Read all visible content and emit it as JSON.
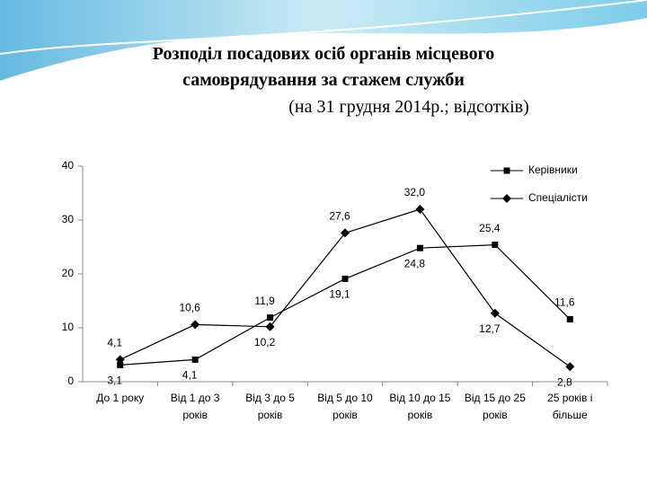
{
  "chart_data": {
    "type": "line",
    "title": "Розподіл посадових осіб органів місцевого\nсамоврядування за стажем служби",
    "subtitle": "(на 31 грудня 2014р.; відсотків)",
    "categories": [
      "До 1 року",
      "Від 1 до 3\nроків",
      "Від 3 до 5\nроків",
      "Від 5 до 10\nроків",
      "Від 10 до 15\nроків",
      "Від 15 до 25\nроків",
      "25 років і\nбільше"
    ],
    "series": [
      {
        "name": "Керівники",
        "color": "#000000",
        "marker": "square",
        "values": [
          3.1,
          4.1,
          11.9,
          19.1,
          24.8,
          25.4,
          11.6
        ],
        "value_labels": [
          "3,1",
          "4,1",
          "11,9",
          "19,1",
          "24,8",
          "25,4",
          "11,6"
        ]
      },
      {
        "name": "Спеціалісти",
        "color": "#000000",
        "marker": "diamond",
        "values": [
          4.1,
          10.6,
          10.2,
          27.6,
          32.0,
          12.7,
          2.8
        ],
        "value_labels": [
          "4,1",
          "10,6",
          "10,2",
          "27,6",
          "32,0",
          "12,7",
          "2,8"
        ]
      }
    ],
    "ylim": [
      0,
      40
    ],
    "yticks": [
      0,
      10,
      20,
      30,
      40
    ],
    "grid": false,
    "legend": "top-right"
  }
}
